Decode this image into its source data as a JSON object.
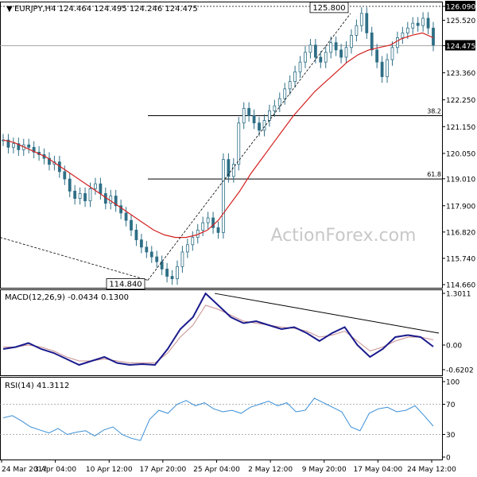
{
  "header": {
    "symbol": "EURJPY",
    "timeframe": "H4",
    "ohlc": [
      "124.464",
      "124.495",
      "124.246",
      "124.475"
    ]
  },
  "watermark": "ActionForex.com",
  "colors": {
    "candle": "#2e6f86",
    "ma": "#d42020",
    "macd": "#1a1a8c",
    "signal": "#c89090",
    "rsi": "#3b8fd6",
    "grid": "#000000",
    "text": "#000000"
  },
  "chart_data": [
    {
      "type": "line",
      "title": "EURJPY,H4",
      "y_ticks": [
        126.09,
        125.52,
        124.475,
        123.36,
        122.25,
        121.15,
        120.05,
        119.01,
        117.9,
        116.82,
        115.74,
        114.66
      ],
      "y_range": [
        114.66,
        126.09
      ],
      "x_ticks": [
        "24 Mar 2017",
        "3 Apr 04:00",
        "10 Apr 12:00",
        "17 Apr 20:00",
        "25 Apr 04:00",
        "2 May 12:00",
        "9 May 20:00",
        "17 May 04:00",
        "24 May 12:00"
      ],
      "last_price": 124.475,
      "annotations": [
        {
          "text": "125.800",
          "value": 125.8
        },
        {
          "text": "114.840",
          "value": 114.84
        }
      ],
      "fib_levels": [
        {
          "label": "38.2",
          "value": 121.6
        },
        {
          "label": "61.8",
          "value": 119.0
        }
      ],
      "price_series": [
        120.6,
        120.3,
        120.45,
        120.2,
        120.4,
        120.3,
        120.1,
        120.0,
        119.85,
        119.6,
        119.7,
        119.3,
        119.0,
        118.5,
        118.2,
        118.4,
        118.1,
        118.6,
        118.8,
        118.4,
        118.0,
        118.3,
        117.9,
        117.6,
        117.3,
        116.9,
        116.5,
        116.2,
        116.0,
        115.8,
        115.6,
        115.3,
        115.0,
        114.9,
        115.4,
        116.0,
        116.3,
        116.6,
        116.9,
        117.2,
        117.4,
        117.0,
        116.8,
        119.8,
        119.1,
        119.6,
        121.3,
        121.9,
        121.6,
        121.3,
        121.0,
        121.4,
        121.8,
        122.0,
        122.3,
        122.7,
        123.0,
        123.4,
        123.8,
        124.2,
        124.5,
        124.0,
        123.8,
        124.2,
        124.6,
        124.3,
        124.0,
        124.4,
        124.9,
        125.3,
        125.8,
        125.0,
        124.3,
        123.8,
        123.2,
        123.9,
        124.4,
        124.8,
        125.0,
        125.2,
        125.4,
        125.3,
        125.6,
        125.2,
        124.5
      ],
      "ma_series": [
        120.6,
        120.5,
        120.3,
        120.1,
        119.9,
        119.6,
        119.3,
        119.0,
        118.7,
        118.4,
        118.1,
        117.8,
        117.5,
        117.2,
        116.9,
        116.7,
        116.6,
        116.6,
        116.7,
        116.9,
        117.3,
        117.9,
        118.5,
        119.2,
        119.8,
        120.4,
        121.0,
        121.6,
        122.1,
        122.6,
        123.0,
        123.4,
        123.8,
        124.1,
        124.3,
        124.4,
        124.5,
        124.75,
        124.9,
        125.0,
        124.8
      ]
    },
    {
      "type": "line",
      "title": "MACD(12,26,9)",
      "header_values": [
        "-0.0434",
        "0.1300"
      ],
      "y_ticks": [
        1.3011,
        0.0,
        -0.6202
      ],
      "y_range": [
        -0.6202,
        1.3011
      ],
      "series": [
        {
          "values": [
            -0.1,
            -0.05,
            0.05,
            -0.1,
            -0.2,
            -0.35,
            -0.5,
            -0.4,
            -0.3,
            -0.45,
            -0.5,
            -0.48,
            -0.5,
            -0.1,
            0.4,
            0.7,
            1.3,
            1.0,
            0.7,
            0.55,
            0.6,
            0.5,
            0.4,
            0.45,
            0.3,
            0.1,
            0.3,
            0.45,
            0.0,
            -0.3,
            -0.1,
            0.2,
            0.25,
            0.2,
            -0.04
          ]
        },
        {
          "values": [
            -0.05,
            -0.05,
            0.0,
            -0.05,
            -0.15,
            -0.3,
            -0.4,
            -0.4,
            -0.35,
            -0.4,
            -0.45,
            -0.45,
            -0.45,
            -0.2,
            0.2,
            0.5,
            1.0,
            0.9,
            0.75,
            0.6,
            0.55,
            0.5,
            0.45,
            0.42,
            0.35,
            0.2,
            0.25,
            0.35,
            0.1,
            -0.15,
            -0.05,
            0.1,
            0.2,
            0.2,
            0.13
          ]
        }
      ]
    },
    {
      "type": "line",
      "title": "RSI(14)",
      "header_values": [
        "41.3112"
      ],
      "y_ticks": [
        100,
        70,
        30,
        0
      ],
      "y_range": [
        0,
        100
      ],
      "series": [
        {
          "values": [
            52,
            55,
            48,
            40,
            36,
            32,
            38,
            30,
            33,
            35,
            28,
            36,
            40,
            30,
            25,
            22,
            50,
            62,
            58,
            70,
            75,
            68,
            72,
            64,
            60,
            62,
            58,
            66,
            70,
            74,
            68,
            72,
            60,
            62,
            78,
            72,
            66,
            60,
            40,
            35,
            58,
            64,
            66,
            60,
            62,
            68,
            55,
            41
          ]
        }
      ]
    }
  ]
}
